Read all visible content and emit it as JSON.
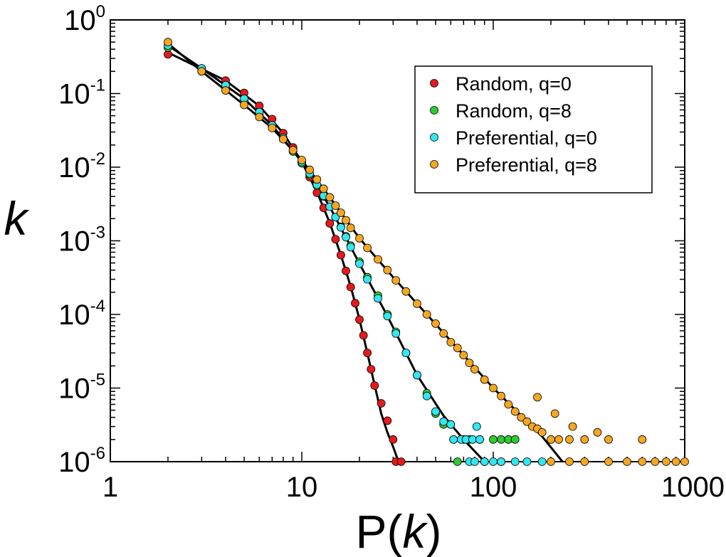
{
  "chart_data": {
    "type": "scatter",
    "xlabel": "P(k)",
    "xlabel_prefix": "P(",
    "xlabel_var": "k",
    "xlabel_suffix": ")",
    "ylabel": "k",
    "xscale": "log",
    "yscale": "log",
    "xlim": [
      1,
      1000
    ],
    "ylim": [
      1e-06,
      1
    ],
    "x_ticks": [
      {
        "value": 1,
        "label": "1"
      },
      {
        "value": 10,
        "label": "10"
      },
      {
        "value": 100,
        "label": "100"
      },
      {
        "value": 1000,
        "label": "1000"
      }
    ],
    "y_ticks": [
      {
        "value": 1,
        "base": "10",
        "exp": "0"
      },
      {
        "value": 0.1,
        "base": "10",
        "exp": "-1"
      },
      {
        "value": 0.01,
        "base": "10",
        "exp": "-2"
      },
      {
        "value": 0.001,
        "base": "10",
        "exp": "-3"
      },
      {
        "value": 0.0001,
        "base": "10",
        "exp": "-4"
      },
      {
        "value": 1e-05,
        "base": "10",
        "exp": "-5"
      },
      {
        "value": 1e-06,
        "base": "10",
        "exp": "-6"
      }
    ],
    "legend_position": "top-right",
    "series": [
      {
        "name": "Random, q=0",
        "color": "#e41a1c",
        "points": [
          [
            2,
            0.34
          ],
          [
            3,
            0.22
          ],
          [
            4,
            0.15
          ],
          [
            5,
            0.102
          ],
          [
            6,
            0.068
          ],
          [
            7,
            0.045
          ],
          [
            8,
            0.029
          ],
          [
            9,
            0.0185
          ],
          [
            10,
            0.0117
          ],
          [
            11,
            0.0073
          ],
          [
            12,
            0.0045
          ],
          [
            13,
            0.0028
          ],
          [
            14,
            0.00172
          ],
          [
            15,
            0.00105
          ],
          [
            16,
            0.00064
          ],
          [
            17,
            0.00039
          ],
          [
            18,
            0.000235
          ],
          [
            19,
            0.000142
          ],
          [
            20,
            8.5e-05
          ],
          [
            21,
            5.2e-05
          ],
          [
            22,
            3e-05
          ],
          [
            23,
            1.8e-05
          ],
          [
            24,
            1.08e-05
          ],
          [
            26,
            6.2e-06
          ],
          [
            28,
            3.6e-06
          ],
          [
            30,
            2e-06
          ],
          [
            31,
            1e-06
          ],
          [
            33,
            1e-06
          ]
        ],
        "fit": [
          [
            2,
            0.36
          ],
          [
            4,
            0.15
          ],
          [
            6,
            0.068
          ],
          [
            8,
            0.029
          ],
          [
            10,
            0.0118
          ],
          [
            12,
            0.0046
          ],
          [
            14,
            0.00175
          ],
          [
            16,
            0.00064
          ],
          [
            18,
            0.00024
          ],
          [
            20,
            8.6e-05
          ],
          [
            22,
            3e-05
          ],
          [
            24,
            1.1e-05
          ],
          [
            26,
            4.5e-06
          ],
          [
            28,
            2.5e-06
          ],
          [
            30,
            1.6e-06
          ],
          [
            32,
            1e-06
          ]
        ]
      },
      {
        "name": "Random, q=8",
        "color": "#2ecc2e",
        "points": [
          [
            2,
            0.42
          ],
          [
            3,
            0.2
          ],
          [
            4,
            0.12
          ],
          [
            5,
            0.078
          ],
          [
            6,
            0.052
          ],
          [
            7,
            0.035
          ],
          [
            8,
            0.024
          ],
          [
            9,
            0.0163
          ],
          [
            10,
            0.0113
          ],
          [
            11,
            0.0079
          ],
          [
            12,
            0.0056
          ],
          [
            13,
            0.004
          ],
          [
            14,
            0.0029
          ],
          [
            15,
            0.0021
          ],
          [
            16,
            0.00155
          ],
          [
            17,
            0.00115
          ],
          [
            18,
            0.00086
          ],
          [
            20,
            0.00052
          ],
          [
            22,
            0.00032
          ],
          [
            25,
            0.00018
          ],
          [
            28,
            0.0001
          ],
          [
            31,
            5.8e-05
          ],
          [
            35,
            3e-05
          ],
          [
            40,
            1.5e-05
          ],
          [
            45,
            8.5e-06
          ],
          [
            50,
            4.5e-06
          ],
          [
            55,
            3.2e-06
          ],
          [
            60,
            3.2e-06
          ],
          [
            62,
            2e-06
          ],
          [
            70,
            2e-06
          ],
          [
            75,
            2e-06
          ],
          [
            85,
            2e-06
          ],
          [
            100,
            2e-06
          ],
          [
            110,
            2e-06
          ],
          [
            120,
            2e-06
          ],
          [
            130,
            2e-06
          ],
          [
            65,
            1e-06
          ],
          [
            90,
            1e-06
          ],
          [
            110,
            1e-06
          ]
        ],
        "fit": []
      },
      {
        "name": "Preferential, q=0",
        "color": "#33e6f0",
        "points": [
          [
            2,
            0.45
          ],
          [
            3,
            0.22
          ],
          [
            4,
            0.13
          ],
          [
            5,
            0.085
          ],
          [
            6,
            0.056
          ],
          [
            7,
            0.037
          ],
          [
            8,
            0.025
          ],
          [
            9,
            0.017
          ],
          [
            10,
            0.0118
          ],
          [
            11,
            0.0082
          ],
          [
            12,
            0.0058
          ],
          [
            13,
            0.0041
          ],
          [
            14,
            0.0029
          ],
          [
            15,
            0.0021
          ],
          [
            16,
            0.00152
          ],
          [
            17,
            0.00112
          ],
          [
            18,
            0.00082
          ],
          [
            20,
            0.00049
          ],
          [
            22,
            0.0003
          ],
          [
            25,
            0.000165
          ],
          [
            28,
            9.5e-05
          ],
          [
            31,
            5.5e-05
          ],
          [
            35,
            3e-05
          ],
          [
            40,
            1.5e-05
          ],
          [
            45,
            7.8e-06
          ],
          [
            50,
            4.8e-06
          ],
          [
            55,
            3.5e-06
          ],
          [
            60,
            3.2e-06
          ],
          [
            62,
            2e-06
          ],
          [
            68,
            2e-06
          ],
          [
            72,
            2e-06
          ],
          [
            78,
            2e-06
          ],
          [
            82,
            3e-06
          ],
          [
            85,
            2e-06
          ],
          [
            75,
            1e-06
          ],
          [
            80,
            1e-06
          ],
          [
            90,
            1e-06
          ],
          [
            100,
            1e-06
          ],
          [
            110,
            1e-06
          ],
          [
            130,
            1e-06
          ],
          [
            150,
            1e-06
          ],
          [
            180,
            1e-06
          ]
        ],
        "fit": [
          [
            2,
            0.45
          ],
          [
            3,
            0.22
          ],
          [
            5,
            0.085
          ],
          [
            7,
            0.037
          ],
          [
            10,
            0.0118
          ],
          [
            14,
            0.0029
          ],
          [
            20,
            0.00049
          ],
          [
            28,
            9.5e-05
          ],
          [
            40,
            1.5e-05
          ],
          [
            55,
            4.2e-06
          ],
          [
            70,
            2e-06
          ],
          [
            90,
            1e-06
          ]
        ]
      },
      {
        "name": "Preferential, q=8",
        "color": "#f5a623",
        "points": [
          [
            2,
            0.5
          ],
          [
            3,
            0.2
          ],
          [
            4,
            0.11
          ],
          [
            5,
            0.07
          ],
          [
            6,
            0.048
          ],
          [
            7,
            0.034
          ],
          [
            8,
            0.024
          ],
          [
            9,
            0.017
          ],
          [
            10,
            0.0125
          ],
          [
            11,
            0.0092
          ],
          [
            12,
            0.0068
          ],
          [
            13,
            0.0051
          ],
          [
            14,
            0.0039
          ],
          [
            15,
            0.003
          ],
          [
            16,
            0.0024
          ],
          [
            17,
            0.0019
          ],
          [
            18,
            0.0015
          ],
          [
            20,
            0.00108
          ],
          [
            22,
            0.0008
          ],
          [
            25,
            0.00056
          ],
          [
            28,
            0.0004
          ],
          [
            31,
            0.00029
          ],
          [
            35,
            0.000205
          ],
          [
            40,
            0.00014
          ],
          [
            45,
            0.0001
          ],
          [
            50,
            7.5e-05
          ],
          [
            55,
            5.5e-05
          ],
          [
            60,
            4.2e-05
          ],
          [
            65,
            3.5e-05
          ],
          [
            70,
            2.8e-05
          ],
          [
            75,
            2.2e-05
          ],
          [
            80,
            1.8e-05
          ],
          [
            90,
            1.3e-05
          ],
          [
            100,
            1e-05
          ],
          [
            110,
            7.8e-06
          ],
          [
            120,
            6e-06
          ],
          [
            130,
            4.8e-06
          ],
          [
            140,
            4e-06
          ],
          [
            150,
            3.5e-06
          ],
          [
            160,
            3e-06
          ],
          [
            170,
            2.8e-06
          ],
          [
            180,
            2.5e-06
          ],
          [
            200,
            2e-06
          ],
          [
            220,
            2e-06
          ],
          [
            250,
            2e-06
          ],
          [
            300,
            2e-06
          ],
          [
            400,
            2e-06
          ],
          [
            600,
            2e-06
          ],
          [
            170,
            7.5e-06
          ],
          [
            210,
            4.5e-06
          ],
          [
            260,
            3e-06
          ],
          [
            350,
            2.5e-06
          ],
          [
            200,
            1e-06
          ],
          [
            250,
            1e-06
          ],
          [
            300,
            1e-06
          ],
          [
            400,
            1e-06
          ],
          [
            500,
            1e-06
          ],
          [
            600,
            1e-06
          ],
          [
            700,
            1e-06
          ],
          [
            800,
            1e-06
          ],
          [
            900,
            1e-06
          ],
          [
            1000,
            1e-06
          ]
        ],
        "fit": [
          [
            2,
            0.48
          ],
          [
            3,
            0.2
          ],
          [
            5,
            0.07
          ],
          [
            7,
            0.034
          ],
          [
            10,
            0.0125
          ],
          [
            14,
            0.0039
          ],
          [
            20,
            0.00108
          ],
          [
            30,
            0.00032
          ],
          [
            45,
            0.0001
          ],
          [
            70,
            2.8e-05
          ],
          [
            100,
            1e-05
          ],
          [
            140,
            4.2e-06
          ],
          [
            180,
            2.2e-06
          ],
          [
            230,
            1e-06
          ]
        ]
      }
    ]
  }
}
